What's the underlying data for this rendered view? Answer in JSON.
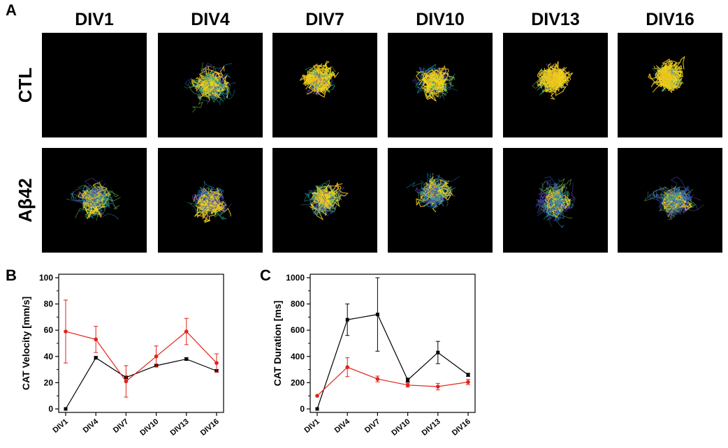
{
  "panel_letters": {
    "a": "A",
    "b": "B",
    "c": "C"
  },
  "grid": {
    "columns": [
      "DIV1",
      "DIV4",
      "DIV7",
      "DIV10",
      "DIV13",
      "DIV16"
    ],
    "rows": [
      "CTL",
      "Aβ42"
    ],
    "trace_colors": [
      "#f2d31a",
      "#e8c020",
      "#1f86b3",
      "#1fa38e",
      "#3a55c4",
      "#5a3fa8",
      "#6fbf4a"
    ]
  },
  "colors": {
    "ctl": "#000000",
    "abeta": "#e2231a",
    "image_bg": "#000000"
  },
  "chart_data": [
    {
      "id": "B",
      "type": "line",
      "title": "",
      "xlabel": "",
      "ylabel": "CAT Velocity [mm/s]",
      "categories": [
        "DIV1",
        "DIV4",
        "DIV7",
        "DIV10",
        "DIV13",
        "DIV16"
      ],
      "ylim": [
        0,
        100
      ],
      "yticks": [
        0,
        20,
        40,
        60,
        80,
        100
      ],
      "series": [
        {
          "name": "CTL",
          "color": "#000000",
          "marker": "square",
          "values": [
            0,
            39,
            24,
            33,
            38,
            29
          ],
          "errors": [
            0,
            1,
            1,
            1,
            1,
            1
          ]
        },
        {
          "name": "Aβ42",
          "color": "#e2231a",
          "marker": "circle",
          "values": [
            59,
            53,
            21,
            40,
            59,
            35
          ],
          "errors": [
            24,
            10,
            12,
            8,
            10,
            7
          ]
        }
      ]
    },
    {
      "id": "C",
      "type": "line",
      "title": "",
      "xlabel": "",
      "ylabel": "CAT Duration [ms]",
      "categories": [
        "DIV1",
        "DIV4",
        "DIV7",
        "DIV10",
        "DIV13",
        "DIV16"
      ],
      "ylim": [
        0,
        1000
      ],
      "yticks": [
        0,
        200,
        400,
        600,
        800,
        1000
      ],
      "series": [
        {
          "name": "CTL",
          "color": "#000000",
          "marker": "square",
          "values": [
            0,
            680,
            720,
            220,
            430,
            260
          ],
          "errors": [
            0,
            120,
            280,
            15,
            85,
            12
          ]
        },
        {
          "name": "Aβ42",
          "color": "#e2231a",
          "marker": "circle",
          "values": [
            100,
            318,
            228,
            182,
            170,
            205
          ],
          "errors": [
            0,
            72,
            22,
            15,
            25,
            20
          ]
        }
      ]
    }
  ]
}
